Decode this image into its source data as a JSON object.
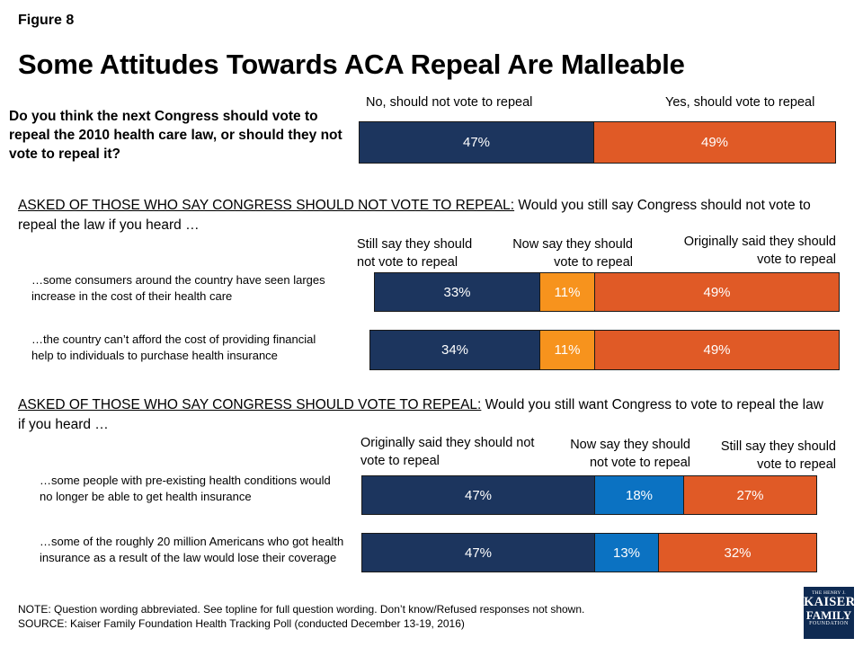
{
  "figure_label": "Figure 8",
  "title": "Some Attitudes Towards ACA Repeal Are Malleable",
  "colors": {
    "navy": "#1c355e",
    "orange": "#e05a26",
    "lightorange": "#f7931d",
    "blue": "#0b72c2"
  },
  "chart_data": [
    {
      "type": "bar",
      "question": "Do you think the next Congress should vote to repeal the 2010 health care law, or should they not vote to repeal it?",
      "series_headers": [
        "No, should not vote to repeal",
        "Yes, should vote to repeal"
      ],
      "rows": [
        {
          "label": "",
          "values": [
            47,
            49
          ],
          "display": [
            "47%",
            "49%"
          ]
        }
      ]
    },
    {
      "type": "bar",
      "heading_underlined": "ASKED OF THOSE WHO SAY CONGRESS SHOULD NOT VOTE TO REPEAL:",
      "heading_rest": " Would you still say Congress should not vote to repeal the law if you heard …",
      "series_headers": [
        "Still say they should not vote to repeal",
        "Now say they should vote to repeal",
        "Originally said they should vote to repeal"
      ],
      "rows": [
        {
          "label": "…some consumers around the country have seen larges increase in the cost of their health care",
          "values": [
            33,
            11,
            49
          ],
          "display": [
            "33%",
            "11%",
            "49%"
          ]
        },
        {
          "label": "…the country can’t afford the cost of providing financial help to individuals to purchase health insurance",
          "values": [
            34,
            11,
            49
          ],
          "display": [
            "34%",
            "11%",
            "49%"
          ]
        }
      ]
    },
    {
      "type": "bar",
      "heading_underlined": "ASKED OF THOSE WHO SAY CONGRESS SHOULD VOTE TO REPEAL:",
      "heading_rest": " Would you still want Congress to vote to repeal the law if you heard …",
      "series_headers": [
        "Originally said they should not vote to repeal",
        "Now say they should not vote to repeal",
        "Still say they should vote to repeal"
      ],
      "rows": [
        {
          "label": "…some people with pre-existing health conditions would no longer be able to get health insurance",
          "values": [
            47,
            18,
            27
          ],
          "display": [
            "47%",
            "18%",
            "27%"
          ]
        },
        {
          "label": "…some of the roughly 20 million Americans who got health insurance as a result of the law would lose their coverage",
          "values": [
            47,
            13,
            32
          ],
          "display": [
            "47%",
            "13%",
            "32%"
          ]
        }
      ]
    }
  ],
  "note": "NOTE: Question wording abbreviated. See topline for full question wording. Don’t know/Refused responses not shown.",
  "source": "SOURCE: Kaiser Family Foundation Health Tracking Poll (conducted December 13-19, 2016)",
  "logo": {
    "line1": "THE HENRY J.",
    "line2": "KAISER",
    "line3": "FAMILY",
    "line4": "FOUNDATION"
  }
}
